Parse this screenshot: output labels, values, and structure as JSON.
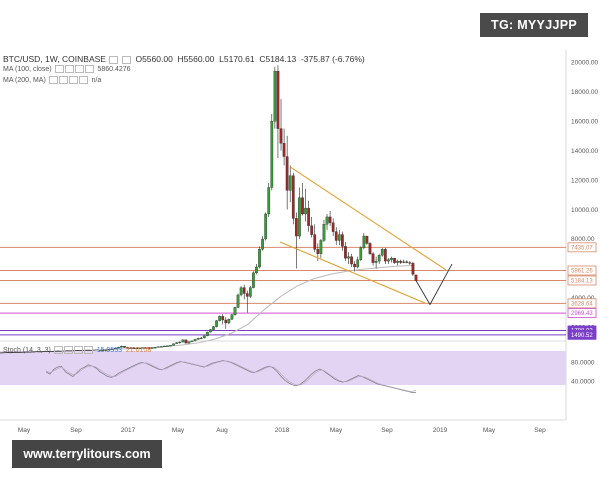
{
  "header": {
    "symbol": "BTC/USD, 1W, COINBASE",
    "open": "O5560.00",
    "high": "H5560.00",
    "low": "L5170.61",
    "close": "C5184.13",
    "change": "-375.87 (-6.76%)"
  },
  "indicators": {
    "ma100_label": "MA (100, close)",
    "ma100_value": "5860.4276",
    "ma200_label": "MA (200, MA)",
    "ma200_value": "n/a",
    "stoch_label": "Stoch (14, 3, 3)",
    "stoch_k": "15.9553",
    "stoch_d": "21.0108"
  },
  "watermarks": {
    "tg": "TG: MYYJJPP",
    "site": "www.terrylitours.com"
  },
  "colors": {
    "up": "#3a9a3a",
    "down": "#9b2a2a",
    "hline": "#d9886a",
    "wedge": "#e0a030",
    "ma_line": "#bbbbbb",
    "stoch_bg": "#e4d4f4",
    "magenta": "#d24fd2",
    "purple": "#7a3ec8"
  },
  "chart_data": {
    "type": "candlestick",
    "y_axis": {
      "ticks": [
        0,
        2000,
        4000,
        6000,
        8000,
        10000,
        12000,
        14000,
        16000,
        18000,
        20000
      ],
      "tick_labels": [
        "0.00",
        "2000.00",
        "4000.00",
        "6000.00",
        "8000.00",
        "10000.00",
        "12000.00",
        "14000.00",
        "16000.00",
        "18000.00",
        "20000.00"
      ],
      "ylim": [
        -1000,
        21000
      ]
    },
    "x_axis": {
      "tick_labels": [
        "May",
        "Sep",
        "2017",
        "May",
        "Aug",
        "2018",
        "May",
        "Sep",
        "2019",
        "May",
        "Sep"
      ],
      "tick_dates": [
        "2016-05",
        "2016-09",
        "2017-01",
        "2017-05",
        "2017-08",
        "2018-01",
        "2018-05",
        "2018-09",
        "2019-01",
        "2019-05",
        "2019-09"
      ]
    },
    "price_levels": [
      {
        "value": 7435.07,
        "label": "7435.07",
        "color": "#d9886a"
      },
      {
        "value": 5861.26,
        "label": "5861.26",
        "color": "#d9886a"
      },
      {
        "value": 5184.13,
        "label": "5184.13",
        "color": "#d9886a"
      },
      {
        "value": 3628.64,
        "label": "3628.64",
        "color": "#d9886a"
      },
      {
        "value": 2969.43,
        "label": "2969.43",
        "color": "#d24fd2"
      },
      {
        "value": 1788.03,
        "label": "1788.03",
        "color": "#7a3ec8"
      },
      {
        "value": 1490.52,
        "label": "1490.52",
        "color": "#7a3ec8"
      }
    ],
    "candles": [
      [
        450,
        460,
        440,
        455
      ],
      [
        455,
        470,
        445,
        460
      ],
      [
        460,
        480,
        450,
        470
      ],
      [
        470,
        520,
        460,
        510
      ],
      [
        510,
        560,
        500,
        540
      ],
      [
        540,
        600,
        520,
        580
      ],
      [
        580,
        680,
        560,
        650
      ],
      [
        650,
        780,
        620,
        720
      ],
      [
        720,
        700,
        600,
        640
      ],
      [
        640,
        680,
        580,
        620
      ],
      [
        620,
        660,
        590,
        610
      ],
      [
        610,
        650,
        580,
        600
      ],
      [
        600,
        640,
        570,
        590
      ],
      [
        590,
        620,
        560,
        600
      ],
      [
        600,
        640,
        590,
        620
      ],
      [
        620,
        640,
        600,
        610
      ],
      [
        610,
        630,
        580,
        600
      ],
      [
        600,
        620,
        590,
        610
      ],
      [
        610,
        650,
        600,
        640
      ],
      [
        640,
        700,
        630,
        690
      ],
      [
        690,
        720,
        680,
        700
      ],
      [
        700,
        740,
        690,
        730
      ],
      [
        730,
        760,
        720,
        750
      ],
      [
        750,
        790,
        740,
        780
      ],
      [
        780,
        900,
        770,
        890
      ],
      [
        890,
        1000,
        880,
        960
      ],
      [
        960,
        1050,
        890,
        1000
      ],
      [
        1000,
        1180,
        980,
        1150
      ],
      [
        1150,
        1160,
        900,
        930
      ],
      [
        930,
        1050,
        900,
        1020
      ],
      [
        1020,
        1100,
        1000,
        1080
      ],
      [
        1080,
        1200,
        1050,
        1180
      ],
      [
        1180,
        1300,
        1150,
        1260
      ],
      [
        1260,
        1350,
        1200,
        1280
      ],
      [
        1280,
        1450,
        1250,
        1420
      ],
      [
        1420,
        1700,
        1400,
        1680
      ],
      [
        1680,
        1900,
        1650,
        1850
      ],
      [
        1850,
        2100,
        1800,
        2050
      ],
      [
        2050,
        2500,
        2000,
        2450
      ],
      [
        2450,
        2800,
        2400,
        2750
      ],
      [
        2750,
        2900,
        2200,
        2500
      ],
      [
        2500,
        2700,
        1900,
        2300
      ],
      [
        2300,
        2600,
        2200,
        2550
      ],
      [
        2550,
        2900,
        2500,
        2850
      ],
      [
        2850,
        3400,
        2800,
        3350
      ],
      [
        3350,
        4300,
        3300,
        4200
      ],
      [
        4200,
        4800,
        4100,
        4700
      ],
      [
        4700,
        4900,
        3900,
        4300
      ],
      [
        4300,
        4500,
        3000,
        4100
      ],
      [
        4100,
        4800,
        4000,
        4700
      ],
      [
        4700,
        5800,
        4650,
        5700
      ],
      [
        5700,
        6300,
        5600,
        6100
      ],
      [
        6100,
        7500,
        6000,
        7300
      ],
      [
        7300,
        8200,
        7200,
        8000
      ],
      [
        8000,
        9800,
        7900,
        9700
      ],
      [
        9700,
        11800,
        9500,
        11500
      ],
      [
        11500,
        16500,
        11300,
        16000
      ],
      [
        16000,
        19700,
        15500,
        19400
      ],
      [
        19400,
        19800,
        13500,
        15500
      ],
      [
        15500,
        17500,
        14000,
        14500
      ],
      [
        14500,
        15500,
        13000,
        13600
      ],
      [
        13600,
        15000,
        10000,
        11300
      ],
      [
        11300,
        13000,
        10500,
        12300
      ],
      [
        12300,
        12500,
        9000,
        9400
      ],
      [
        9400,
        9800,
        6000,
        8200
      ],
      [
        8200,
        11500,
        8000,
        10800
      ],
      [
        10800,
        11800,
        9600,
        9700
      ],
      [
        9700,
        11400,
        9200,
        10100
      ],
      [
        10100,
        10600,
        8500,
        8900
      ],
      [
        8900,
        9500,
        8100,
        8300
      ],
      [
        8300,
        9000,
        7100,
        7300
      ],
      [
        7300,
        7700,
        6500,
        7000
      ],
      [
        7000,
        8000,
        6700,
        7900
      ],
      [
        7900,
        9300,
        7800,
        9000
      ],
      [
        9000,
        9700,
        8600,
        9500
      ],
      [
        9500,
        9900,
        8900,
        9100
      ],
      [
        9100,
        9400,
        8200,
        8500
      ],
      [
        8500,
        8800,
        7600,
        7900
      ],
      [
        7900,
        8600,
        7600,
        8300
      ],
      [
        8300,
        8500,
        7200,
        7500
      ],
      [
        7500,
        7800,
        6500,
        6700
      ],
      [
        6700,
        7100,
        6300,
        6800
      ],
      [
        6800,
        7000,
        6100,
        6300
      ],
      [
        6300,
        6500,
        5800,
        6100
      ],
      [
        6100,
        6800,
        6000,
        6600
      ],
      [
        6600,
        7500,
        6500,
        7400
      ],
      [
        7400,
        8400,
        7300,
        8200
      ],
      [
        8200,
        8200,
        7600,
        7700
      ],
      [
        7700,
        7800,
        6900,
        7000
      ],
      [
        7000,
        7100,
        6200,
        6400
      ],
      [
        6400,
        6800,
        6000,
        6500
      ],
      [
        6500,
        7000,
        6300,
        6900
      ],
      [
        6900,
        7400,
        6800,
        7300
      ],
      [
        7300,
        7400,
        6300,
        6500
      ],
      [
        6500,
        6700,
        6300,
        6600
      ],
      [
        6600,
        6800,
        6400,
        6700
      ],
      [
        6700,
        6700,
        6300,
        6400
      ],
      [
        6400,
        6600,
        6200,
        6500
      ],
      [
        6500,
        6600,
        6300,
        6400
      ],
      [
        6400,
        6600,
        6350,
        6450
      ],
      [
        6450,
        6550,
        6350,
        6400
      ],
      [
        6400,
        6500,
        6250,
        6350
      ],
      [
        6350,
        6450,
        5500,
        5600
      ],
      [
        5560,
        5560,
        5170,
        5184
      ]
    ],
    "ma100": [
      [
        46,
        500
      ],
      [
        60,
        520
      ],
      [
        80,
        560
      ],
      [
        100,
        620
      ],
      [
        120,
        700
      ],
      [
        140,
        800
      ],
      [
        160,
        950
      ],
      [
        180,
        1200
      ],
      [
        200,
        1600
      ],
      [
        220,
        2200
      ],
      [
        240,
        3200
      ],
      [
        260,
        4100
      ],
      [
        280,
        4800
      ],
      [
        300,
        5300
      ],
      [
        320,
        5600
      ],
      [
        340,
        5800
      ],
      [
        360,
        5950
      ],
      [
        380,
        6050
      ],
      [
        400,
        6150
      ],
      [
        410,
        6200
      ]
    ],
    "projection": [
      [
        416,
        5184
      ],
      [
        430,
        3550
      ],
      [
        452,
        6300
      ]
    ],
    "wedge_upper": [
      [
        290,
        12900
      ],
      [
        446,
        5900
      ]
    ],
    "wedge_lower": [
      [
        280,
        7800
      ],
      [
        426,
        3620
      ]
    ],
    "stochastic": {
      "ticks": [
        40,
        80
      ],
      "tick_labels": [
        "40.0000",
        "80.0000"
      ],
      "k": [
        60,
        55,
        65,
        70,
        72,
        60,
        55,
        50,
        58,
        66,
        70,
        75,
        72,
        68,
        60,
        55,
        50,
        48,
        52,
        58,
        62,
        66,
        70,
        74,
        78,
        80,
        78,
        74,
        70,
        66,
        64,
        68,
        72,
        76,
        80,
        82,
        80,
        78,
        76,
        74,
        72,
        70,
        74,
        78,
        80,
        82,
        84,
        82,
        80,
        76,
        72,
        68,
        64,
        60,
        58,
        62,
        66,
        70,
        72,
        68,
        60,
        50,
        42,
        36,
        32,
        30,
        34,
        40,
        48,
        56,
        62,
        66,
        62,
        56,
        50,
        44,
        40,
        38,
        40,
        44,
        48,
        52,
        50,
        46,
        42,
        38,
        34,
        32,
        30,
        28,
        26,
        24,
        22,
        20,
        18,
        16,
        15.95
      ],
      "d": [
        62,
        58,
        62,
        66,
        70,
        64,
        58,
        54,
        56,
        62,
        68,
        72,
        72,
        70,
        64,
        58,
        54,
        50,
        50,
        55,
        60,
        64,
        68,
        72,
        76,
        79,
        79,
        76,
        72,
        68,
        65,
        66,
        70,
        74,
        78,
        81,
        81,
        79,
        77,
        75,
        73,
        71,
        72,
        76,
        79,
        81,
        83,
        83,
        81,
        78,
        74,
        70,
        66,
        62,
        59,
        60,
        64,
        68,
        71,
        70,
        64,
        55,
        47,
        40,
        35,
        32,
        32,
        36,
        43,
        51,
        58,
        63,
        63,
        58,
        52,
        47,
        42,
        39,
        39,
        42,
        46,
        50,
        50,
        48,
        44,
        40,
        36,
        33,
        31,
        29,
        27,
        25,
        23,
        21,
        19,
        18,
        21.01
      ]
    }
  }
}
